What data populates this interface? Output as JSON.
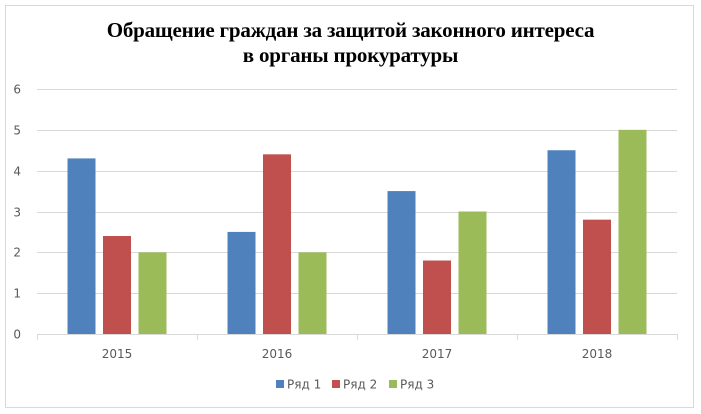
{
  "chart": {
    "title_line1": "Обращение граждан за защитой законного интереса",
    "title_line2": "в органы прокуратуры"
  },
  "chart_data": {
    "type": "bar",
    "title": "Обращение граждан за защитой законного интереса в органы прокуратуры",
    "xlabel": "",
    "ylabel": "",
    "categories": [
      "2015",
      "2016",
      "2017",
      "2018"
    ],
    "series": [
      {
        "name": "Ряд 1",
        "color": "#4f81bd",
        "values": [
          4.3,
          2.5,
          3.5,
          4.5
        ]
      },
      {
        "name": "Ряд 2",
        "color": "#c0504d",
        "values": [
          2.4,
          4.4,
          1.8,
          2.8
        ]
      },
      {
        "name": "Ряд 3",
        "color": "#9bbb59",
        "values": [
          2.0,
          2.0,
          3.0,
          5.0
        ]
      }
    ],
    "ylim": [
      0,
      6
    ],
    "yticks": [
      0,
      1,
      2,
      3,
      4,
      5,
      6
    ],
    "grid": true,
    "legend_position": "bottom"
  }
}
